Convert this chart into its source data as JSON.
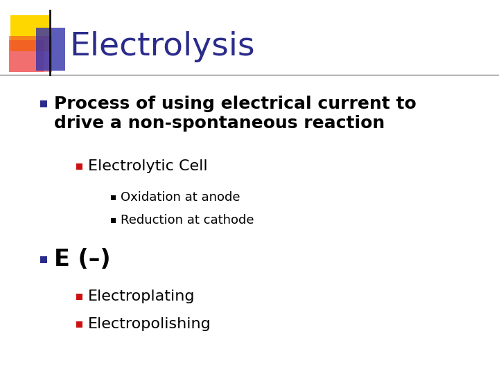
{
  "title": "Electrolysis",
  "title_color": "#2B2B8C",
  "title_fontsize": 34,
  "bg_color": "#FFFFFF",
  "bullet1_text1": "Process of using electrical current to",
  "bullet1_text2": "drive a non-spontaneous reaction",
  "bullet1_fontsize": 18,
  "bullet2_text": "Electrolytic Cell",
  "bullet2_fontsize": 16,
  "sub1_text": "Oxidation at anode",
  "sub1_fontsize": 13,
  "sub2_text": "Reduction at cathode",
  "sub2_fontsize": 13,
  "bullet3_text": "E (–)",
  "bullet3_fontsize": 24,
  "sub3_text": "Electroplating",
  "sub3_fontsize": 16,
  "sub4_text": "Electropolishing",
  "sub4_fontsize": 16,
  "bullet_blue": "#2B2B8C",
  "bullet_red": "#CC1111",
  "bullet_darkred": "#AA1111",
  "header_yellow": "#FFD700",
  "header_red": "#EE3333",
  "header_blue": "#3333AA",
  "line_color": "#888888",
  "text_color": "#000000"
}
